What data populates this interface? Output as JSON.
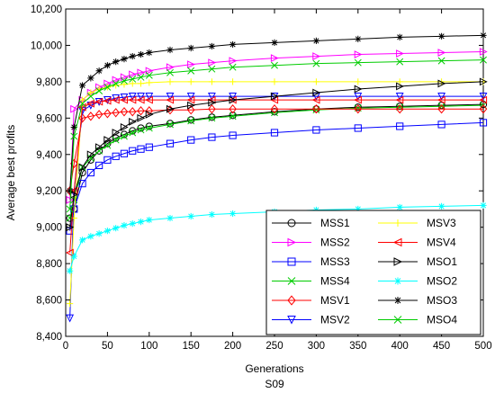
{
  "chart_data": {
    "type": "line",
    "title": "",
    "xlabel": "Generations",
    "subtitle": "S09",
    "ylabel": "Average best profits",
    "xlim": [
      0,
      500
    ],
    "ylim": [
      8400,
      10200
    ],
    "xticks": [
      0,
      50,
      100,
      150,
      200,
      250,
      300,
      350,
      400,
      450,
      500
    ],
    "yticks": [
      8400,
      8600,
      8800,
      9000,
      9200,
      9400,
      9600,
      9800,
      10000,
      10200
    ],
    "ytick_labels": [
      "8,400",
      "8,600",
      "8,800",
      "9,000",
      "9,200",
      "9,400",
      "9,600",
      "9,800",
      "10,000",
      "10,200"
    ],
    "xtick_labels": [
      "0",
      "50",
      "100",
      "150",
      "200",
      "250",
      "300",
      "350",
      "400",
      "450",
      "500"
    ],
    "grid": false,
    "legend_position": "bottom-right",
    "legend_columns": 2,
    "series": [
      {
        "name": "MSS1",
        "color": "#000000",
        "marker": "circle",
        "x": [
          5,
          10,
          20,
          30,
          40,
          50,
          60,
          70,
          80,
          90,
          100,
          125,
          150,
          175,
          200,
          250,
          300,
          350,
          400,
          450,
          500
        ],
        "y": [
          9050,
          9100,
          9300,
          9370,
          9420,
          9460,
          9490,
          9510,
          9530,
          9545,
          9555,
          9570,
          9590,
          9605,
          9615,
          9635,
          9650,
          9660,
          9665,
          9670,
          9675
        ]
      },
      {
        "name": "MSS2",
        "color": "#ff00ff",
        "marker": "triangle-right",
        "x": [
          5,
          10,
          20,
          30,
          40,
          50,
          60,
          70,
          80,
          90,
          100,
          125,
          150,
          175,
          200,
          250,
          300,
          350,
          400,
          450,
          500
        ],
        "y": [
          9150,
          9650,
          9700,
          9740,
          9770,
          9790,
          9810,
          9825,
          9840,
          9850,
          9860,
          9880,
          9895,
          9905,
          9915,
          9930,
          9940,
          9950,
          9955,
          9960,
          9965
        ]
      },
      {
        "name": "MSS3",
        "color": "#0000ff",
        "marker": "square",
        "x": [
          5,
          10,
          20,
          30,
          40,
          50,
          60,
          70,
          80,
          90,
          100,
          125,
          150,
          175,
          200,
          250,
          300,
          350,
          400,
          450,
          500
        ],
        "y": [
          8980,
          9100,
          9240,
          9300,
          9340,
          9370,
          9390,
          9405,
          9420,
          9430,
          9440,
          9460,
          9480,
          9495,
          9505,
          9520,
          9535,
          9545,
          9555,
          9565,
          9575
        ]
      },
      {
        "name": "MSS4",
        "color": "#00cc00",
        "marker": "x",
        "x": [
          5,
          10,
          20,
          30,
          40,
          50,
          60,
          70,
          80,
          90,
          100,
          125,
          150,
          175,
          200,
          250,
          300,
          350,
          400,
          450,
          500
        ],
        "y": [
          9050,
          9150,
          9330,
          9380,
          9420,
          9450,
          9480,
          9500,
          9520,
          9535,
          9545,
          9565,
          9585,
          9600,
          9610,
          9630,
          9645,
          9655,
          9660,
          9665,
          9670
        ]
      },
      {
        "name": "MSV1",
        "color": "#ff0000",
        "marker": "diamond",
        "x": [
          5,
          10,
          20,
          30,
          40,
          50,
          60,
          70,
          80,
          90,
          100,
          125,
          150,
          175,
          200,
          250,
          300,
          350,
          400,
          450,
          500
        ],
        "y": [
          9200,
          9350,
          9600,
          9610,
          9620,
          9625,
          9630,
          9635,
          9635,
          9640,
          9640,
          9645,
          9645,
          9650,
          9650,
          9650,
          9650,
          9650,
          9650,
          9650,
          9650
        ]
      },
      {
        "name": "MSV2",
        "color": "#0000ff",
        "marker": "triangle-down",
        "x": [
          5,
          10,
          20,
          30,
          40,
          50,
          60,
          70,
          80,
          90,
          100,
          125,
          150,
          175,
          200,
          250,
          300,
          350,
          400,
          450,
          500
        ],
        "y": [
          8500,
          9190,
          9640,
          9670,
          9690,
          9700,
          9710,
          9715,
          9720,
          9720,
          9720,
          9720,
          9720,
          9720,
          9720,
          9720,
          9720,
          9720,
          9720,
          9720,
          9720
        ]
      },
      {
        "name": "MSV3",
        "color": "#ffff00",
        "marker": "plus",
        "x": [
          5,
          10,
          20,
          30,
          40,
          50,
          60,
          70,
          80,
          90,
          100,
          125,
          150,
          175,
          200,
          250,
          300,
          350,
          400,
          450,
          500
        ],
        "y": [
          8580,
          9050,
          9700,
          9740,
          9760,
          9770,
          9780,
          9785,
          9790,
          9790,
          9795,
          9800,
          9800,
          9800,
          9800,
          9800,
          9800,
          9800,
          9800,
          9800,
          9800
        ]
      },
      {
        "name": "MSV4",
        "color": "#ff0000",
        "marker": "triangle-left",
        "x": [
          5,
          10,
          20,
          30,
          40,
          50,
          60,
          70,
          80,
          90,
          100,
          125,
          150,
          175,
          200,
          250,
          300,
          350,
          400,
          450,
          500
        ],
        "y": [
          8860,
          9200,
          9660,
          9680,
          9690,
          9695,
          9700,
          9700,
          9700,
          9700,
          9700,
          9700,
          9700,
          9700,
          9700,
          9700,
          9700,
          9700,
          9700,
          9700,
          9700
        ]
      },
      {
        "name": "MSO1",
        "color": "#000000",
        "marker": "triangle-right",
        "x": [
          5,
          10,
          20,
          30,
          40,
          50,
          60,
          70,
          80,
          90,
          100,
          125,
          150,
          175,
          200,
          250,
          300,
          350,
          400,
          450,
          500
        ],
        "y": [
          9000,
          9180,
          9330,
          9400,
          9440,
          9480,
          9520,
          9550,
          9580,
          9600,
          9620,
          9650,
          9670,
          9685,
          9700,
          9720,
          9740,
          9760,
          9775,
          9790,
          9800
        ]
      },
      {
        "name": "MSO2",
        "color": "#00ffff",
        "marker": "star",
        "x": [
          5,
          10,
          20,
          30,
          40,
          50,
          60,
          70,
          80,
          90,
          100,
          125,
          150,
          175,
          200,
          250,
          300,
          350,
          400,
          450,
          500
        ],
        "y": [
          8760,
          8840,
          8930,
          8950,
          8965,
          8980,
          8995,
          9010,
          9020,
          9030,
          9040,
          9050,
          9060,
          9070,
          9075,
          9085,
          9095,
          9100,
          9110,
          9115,
          9120
        ]
      },
      {
        "name": "MSO3",
        "color": "#000000",
        "marker": "asterisk",
        "x": [
          5,
          10,
          20,
          30,
          40,
          50,
          60,
          70,
          80,
          90,
          100,
          125,
          150,
          175,
          200,
          250,
          300,
          350,
          400,
          450,
          500
        ],
        "y": [
          9200,
          9550,
          9780,
          9820,
          9860,
          9890,
          9910,
          9925,
          9940,
          9950,
          9960,
          9975,
          9985,
          9995,
          10005,
          10015,
          10025,
          10035,
          10045,
          10050,
          10055
        ]
      },
      {
        "name": "MSO4",
        "color": "#00cc00",
        "marker": "x",
        "x": [
          5,
          10,
          20,
          30,
          40,
          50,
          60,
          70,
          80,
          90,
          100,
          125,
          150,
          175,
          200,
          250,
          300,
          350,
          400,
          450,
          500
        ],
        "y": [
          9100,
          9500,
          9680,
          9720,
          9750,
          9770,
          9790,
          9805,
          9815,
          9825,
          9835,
          9850,
          9860,
          9870,
          9880,
          9890,
          9900,
          9905,
          9910,
          9915,
          9920
        ]
      }
    ]
  }
}
